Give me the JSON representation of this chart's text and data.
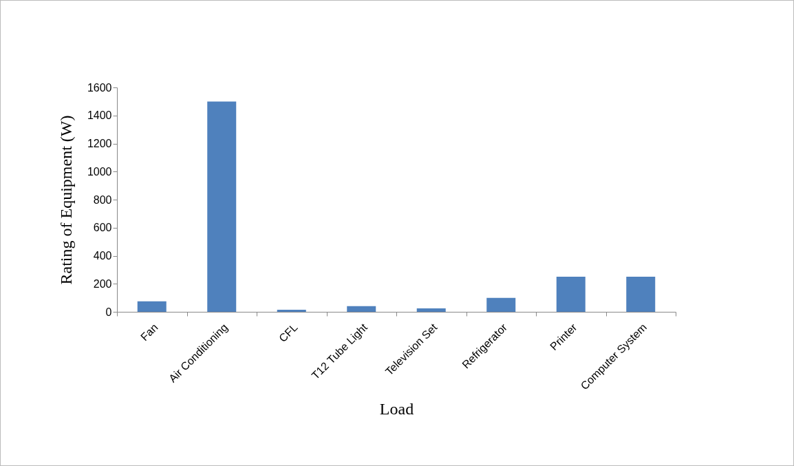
{
  "chart_data": {
    "type": "bar",
    "xlabel": "Load",
    "ylabel": "Rating of Equipment (W)",
    "categories": [
      "Fan",
      "Air Conditioning",
      "CFL",
      "T12 Tube Light",
      "Television Set",
      "Refrigerator",
      "Printer",
      "Computer System"
    ],
    "values": [
      75,
      1500,
      15,
      40,
      25,
      100,
      250,
      250
    ],
    "color": "#4f81bd",
    "ylim": [
      0,
      1600
    ],
    "yticks": [
      0,
      200,
      400,
      600,
      800,
      1000,
      1200,
      1400,
      1600
    ],
    "grid": false
  }
}
